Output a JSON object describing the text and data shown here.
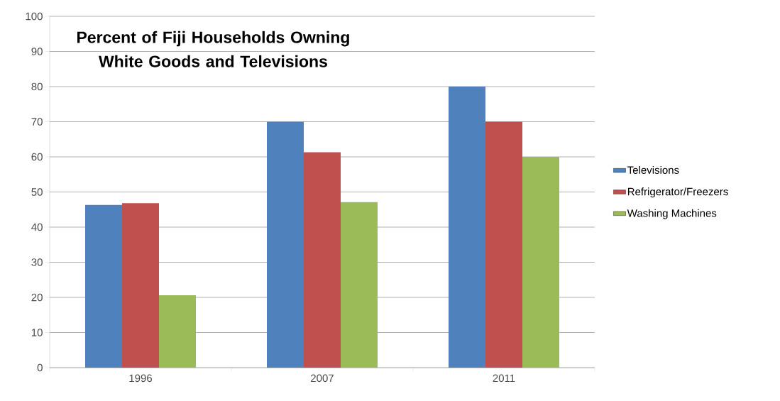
{
  "chart_data": {
    "type": "bar",
    "title": "Percent of Fiji Households Owning White Goods and Televisions",
    "categories": [
      "1996",
      "2007",
      "2011"
    ],
    "series": [
      {
        "name": "Televisions",
        "color": "#4f81bd",
        "values": [
          46.3,
          70,
          80
        ]
      },
      {
        "name": "Refrigerator/Freezers",
        "color": "#c0504d",
        "values": [
          46.8,
          61.3,
          70
        ]
      },
      {
        "name": "Washing Machines",
        "color": "#9bbb59",
        "values": [
          20.6,
          47.1,
          60
        ]
      }
    ],
    "ylim": [
      0,
      100
    ],
    "yticks": [
      0,
      10,
      20,
      30,
      40,
      50,
      60,
      70,
      80,
      90,
      100
    ],
    "grid": "y",
    "legend": "right"
  }
}
